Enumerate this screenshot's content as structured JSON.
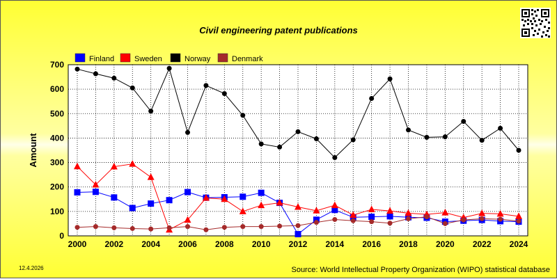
{
  "chart_data": {
    "type": "line",
    "title": "Civil engineering patent publications",
    "ylabel": "Amount",
    "xlabel": "",
    "x": [
      2000,
      2001,
      2002,
      2003,
      2004,
      2005,
      2006,
      2007,
      2008,
      2009,
      2010,
      2011,
      2012,
      2013,
      2014,
      2015,
      2016,
      2017,
      2018,
      2019,
      2020,
      2021,
      2022,
      2023,
      2024
    ],
    "xticks": [
      2000,
      2002,
      2004,
      2006,
      2008,
      2010,
      2012,
      2014,
      2016,
      2018,
      2020,
      2022,
      2024
    ],
    "ylim": [
      0,
      700
    ],
    "yticks": [
      0,
      100,
      200,
      300,
      400,
      500,
      600,
      700
    ],
    "grid": true,
    "legend_position": "top-left",
    "series": [
      {
        "name": "Finland",
        "color": "#0000ff",
        "marker": "square",
        "values": [
          178,
          180,
          157,
          114,
          132,
          146,
          179,
          156,
          158,
          160,
          176,
          135,
          7,
          66,
          106,
          76,
          78,
          80,
          76,
          74,
          58,
          62,
          65,
          60,
          58
        ]
      },
      {
        "name": "Sweden",
        "color": "#ff0000",
        "marker": "triangle",
        "values": [
          284,
          209,
          283,
          294,
          240,
          25,
          65,
          155,
          150,
          100,
          125,
          135,
          118,
          103,
          125,
          85,
          108,
          102,
          93,
          88,
          95,
          75,
          92,
          90,
          80
        ]
      },
      {
        "name": "Norway",
        "color": "#000000",
        "marker": "circle",
        "values": [
          682,
          663,
          645,
          605,
          510,
          685,
          423,
          615,
          582,
          493,
          376,
          363,
          426,
          397,
          320,
          393,
          562,
          642,
          433,
          403,
          405,
          468,
          391,
          440,
          350
        ]
      },
      {
        "name": "Denmark",
        "color": "#a52a2a",
        "marker": "circle",
        "values": [
          35,
          38,
          33,
          30,
          28,
          33,
          38,
          25,
          35,
          38,
          38,
          40,
          42,
          55,
          67,
          62,
          58,
          52,
          70,
          78,
          50,
          65,
          70,
          68,
          60
        ]
      }
    ],
    "footer_date": "12.4.2026",
    "source": "Source: World Intellectual Property Organization (WIPO) statistical database"
  }
}
